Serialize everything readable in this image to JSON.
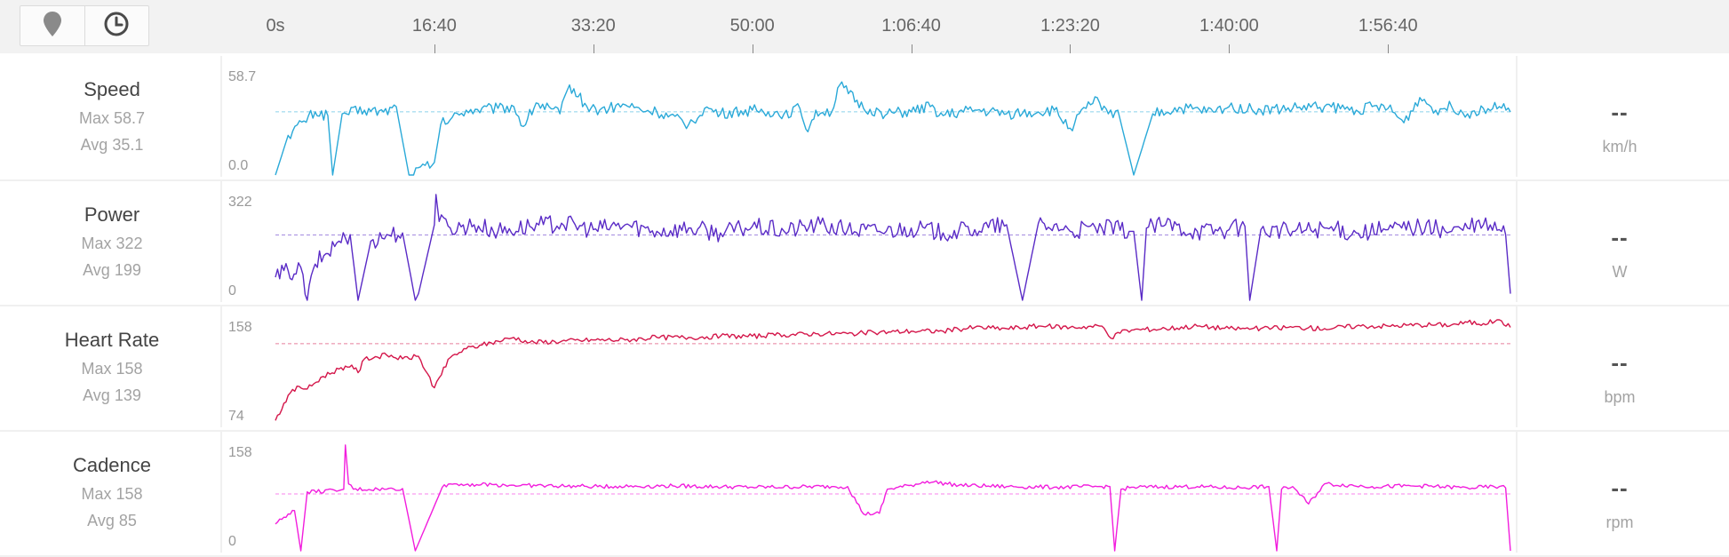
{
  "toolbar": {
    "map_icon": "map-pin-icon",
    "time_icon": "clock-icon"
  },
  "timeline": {
    "ticks": [
      "0s",
      "16:40",
      "33:20",
      "50:00",
      "1:06:40",
      "1:23:20",
      "1:40:00",
      "1:56:40"
    ],
    "tick_seconds": [
      0,
      1000,
      2000,
      3000,
      4000,
      5000,
      6000,
      7000
    ],
    "duration_seconds": 7770
  },
  "metrics": [
    {
      "title": "Speed",
      "max_text": "Max 58.7",
      "avg_text": "Avg 35.1",
      "axis_top": "58.7",
      "axis_bottom": "0.0",
      "current": "--",
      "unit": "km/h",
      "color": "#2aa9d8"
    },
    {
      "title": "Power",
      "max_text": "Max 322",
      "avg_text": "Avg 199",
      "axis_top": "322",
      "axis_bottom": "0",
      "current": "--",
      "unit": "W",
      "color": "#5a2bc6"
    },
    {
      "title": "Heart Rate",
      "max_text": "Max 158",
      "avg_text": "Avg 139",
      "axis_top": "158",
      "axis_bottom": "74",
      "current": "--",
      "unit": "bpm",
      "color": "#d4164a"
    },
    {
      "title": "Cadence",
      "max_text": "Max 158",
      "avg_text": "Avg 85",
      "axis_top": "158",
      "axis_bottom": "0",
      "current": "--",
      "unit": "rpm",
      "color": "#f21ddd"
    }
  ],
  "chart_data": [
    {
      "type": "line",
      "name": "Speed",
      "ylim": [
        0,
        58.7
      ],
      "avg": 35.1,
      "x": [
        0,
        80,
        180,
        250,
        330,
        360,
        420,
        560,
        680,
        760,
        840,
        1000,
        1040,
        1200,
        1400,
        1500,
        1560,
        1640,
        1790,
        1850,
        1960,
        2040,
        2200,
        2300,
        2400,
        2600,
        2700,
        2800,
        3000,
        3100,
        3200,
        3300,
        3350,
        3400,
        3500,
        3550,
        3700,
        3850,
        4000,
        4120,
        4200,
        4400,
        4600,
        4800,
        4900,
        5000,
        5100,
        5170,
        5200,
        5240,
        5300,
        5400,
        5520,
        5700,
        5900,
        6000,
        6200,
        6400,
        6600,
        6800,
        6900,
        7000,
        7100,
        7200,
        7300,
        7400,
        7500,
        7600,
        7700,
        7770
      ],
      "y": [
        0,
        22,
        30,
        35,
        33,
        0,
        34,
        36,
        35,
        38,
        0,
        7,
        28,
        36,
        37,
        38,
        27,
        40,
        34,
        50,
        38,
        36,
        39,
        36,
        35,
        28,
        37,
        34,
        36,
        35,
        34,
        37,
        24,
        36,
        35,
        50,
        37,
        34,
        35,
        38,
        33,
        36,
        34,
        35,
        36,
        26,
        37,
        43,
        36,
        34,
        36,
        0,
        34,
        37,
        35,
        38,
        36,
        37,
        38,
        36,
        38,
        37,
        29,
        43,
        36,
        38,
        34,
        37,
        38,
        35
      ]
    },
    {
      "type": "line",
      "name": "Power",
      "ylim": [
        0,
        322
      ],
      "avg": 199,
      "x": [
        0,
        80,
        130,
        160,
        200,
        250,
        400,
        440,
        470,
        520,
        600,
        700,
        800,
        880,
        900,
        1000,
        1010,
        1030,
        1100,
        1250,
        1400,
        1600,
        1800,
        2000,
        2200,
        2400,
        2600,
        2800,
        3000,
        3200,
        3400,
        3600,
        3800,
        4000,
        4200,
        4400,
        4600,
        4700,
        4800,
        4850,
        4900,
        5000,
        5200,
        5400,
        5450,
        5480,
        5600,
        5800,
        6000,
        6100,
        6130,
        6200,
        6400,
        6600,
        6800,
        7000,
        7200,
        7400,
        7500,
        7600,
        7700,
        7740,
        7770
      ],
      "y": [
        70,
        90,
        80,
        100,
        0,
        110,
        180,
        190,
        200,
        0,
        180,
        200,
        205,
        0,
        20,
        230,
        322,
        240,
        220,
        230,
        210,
        225,
        235,
        215,
        230,
        210,
        220,
        205,
        225,
        210,
        230,
        215,
        210,
        220,
        205,
        215,
        230,
        0,
        235,
        215,
        230,
        210,
        220,
        210,
        0,
        220,
        230,
        210,
        215,
        225,
        0,
        215,
        210,
        220,
        205,
        215,
        225,
        210,
        220,
        230,
        215,
        200,
        20
      ]
    },
    {
      "type": "line",
      "name": "Heart Rate",
      "ylim": [
        74,
        158
      ],
      "avg": 139,
      "x": [
        0,
        80,
        150,
        200,
        300,
        400,
        480,
        520,
        560,
        700,
        800,
        900,
        1000,
        1030,
        1100,
        1200,
        1300,
        1400,
        1500,
        1600,
        1800,
        2000,
        2200,
        2400,
        2600,
        2800,
        3000,
        3200,
        3400,
        3600,
        3800,
        4000,
        4200,
        4400,
        4600,
        4800,
        5000,
        5200,
        5270,
        5300,
        5400,
        5600,
        5800,
        6000,
        6200,
        6400,
        6600,
        6800,
        7000,
        7200,
        7400,
        7500,
        7600,
        7700,
        7770
      ],
      "y": [
        78,
        98,
        105,
        103,
        113,
        119,
        122,
        116,
        127,
        130,
        127,
        129,
        104,
        112,
        128,
        135,
        138,
        141,
        144,
        140,
        141,
        142,
        142,
        144,
        144,
        145,
        145,
        146,
        147,
        147,
        148,
        149,
        149,
        152,
        151,
        153,
        152,
        153,
        143,
        148,
        150,
        151,
        153,
        151,
        151,
        152,
        151,
        153,
        153,
        154,
        154,
        156,
        155,
        158,
        152
      ]
    },
    {
      "type": "line",
      "name": "Cadence",
      "ylim": [
        0,
        158
      ],
      "avg": 85,
      "x": [
        0,
        80,
        120,
        160,
        200,
        400,
        430,
        440,
        460,
        490,
        700,
        800,
        880,
        1050,
        1100,
        1500,
        2000,
        2500,
        3000,
        3500,
        3600,
        3700,
        3800,
        3850,
        4000,
        4100,
        4300,
        4600,
        4900,
        5200,
        5250,
        5280,
        5320,
        5400,
        5800,
        6000,
        6250,
        6300,
        6330,
        6400,
        6500,
        6600,
        6900,
        7200,
        7500,
        7700,
        7740,
        7770
      ],
      "y": [
        40,
        55,
        60,
        0,
        88,
        90,
        92,
        158,
        100,
        92,
        92,
        93,
        0,
        95,
        100,
        98,
        96,
        97,
        95,
        96,
        96,
        55,
        56,
        92,
        98,
        104,
        98,
        96,
        95,
        96,
        96,
        0,
        92,
        95,
        96,
        94,
        96,
        0,
        92,
        96,
        70,
        100,
        96,
        97,
        94,
        96,
        94,
        0
      ]
    }
  ]
}
